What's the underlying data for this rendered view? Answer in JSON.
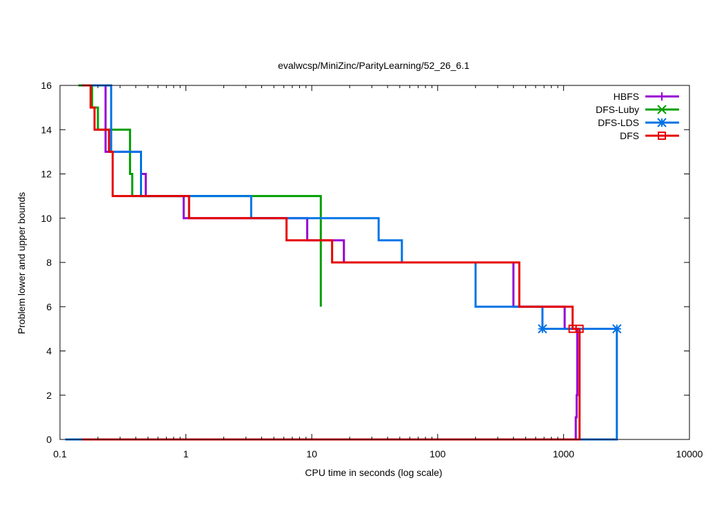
{
  "chart_data": {
    "type": "line",
    "title": "evalwcsp/MiniZinc/ParityLearning/52_26_6.1",
    "xlabel": "CPU time in seconds (log scale)",
    "ylabel": "Problem lower and upper bounds",
    "xscale": "log",
    "xlim": [
      0.1,
      10000
    ],
    "ylim": [
      0,
      16
    ],
    "xticks": [
      {
        "value": 0.1,
        "label": "0.1"
      },
      {
        "value": 1,
        "label": "1"
      },
      {
        "value": 10,
        "label": "10"
      },
      {
        "value": 100,
        "label": "100"
      },
      {
        "value": 1000,
        "label": "1000"
      },
      {
        "value": 10000,
        "label": "10000"
      }
    ],
    "yticks": [
      {
        "value": 0,
        "label": "0"
      },
      {
        "value": 2,
        "label": "2"
      },
      {
        "value": 4,
        "label": "4"
      },
      {
        "value": 6,
        "label": "6"
      },
      {
        "value": 8,
        "label": "8"
      },
      {
        "value": 10,
        "label": "10"
      },
      {
        "value": 12,
        "label": "12"
      },
      {
        "value": 14,
        "label": "14"
      },
      {
        "value": 16,
        "label": "16"
      }
    ],
    "legend_position": "top-right",
    "series": [
      {
        "name": "HBFS",
        "color": "#9400d3",
        "marker": "plus",
        "upper": [
          [
            0.15,
            16
          ],
          [
            0.23,
            16
          ],
          [
            0.23,
            13
          ],
          [
            0.44,
            13
          ],
          [
            0.44,
            12
          ],
          [
            0.48,
            12
          ],
          [
            0.48,
            11
          ],
          [
            0.96,
            11
          ],
          [
            0.96,
            10
          ],
          [
            9.2,
            10
          ],
          [
            9.2,
            9
          ],
          [
            18,
            9
          ],
          [
            18,
            8
          ],
          [
            400,
            8
          ],
          [
            400,
            6
          ],
          [
            1020,
            6
          ],
          [
            1020,
            5
          ],
          [
            1270,
            5
          ]
        ],
        "lower": [
          [
            0.15,
            0
          ],
          [
            1250,
            0
          ],
          [
            1250,
            1
          ],
          [
            1270,
            1
          ],
          [
            1270,
            2
          ],
          [
            1285,
            2
          ],
          [
            1285,
            5
          ]
        ],
        "markers": []
      },
      {
        "name": "DFS-Luby",
        "color": "#009e00",
        "marker": "x",
        "upper": [
          [
            0.14,
            16
          ],
          [
            0.18,
            16
          ],
          [
            0.18,
            15
          ],
          [
            0.2,
            15
          ],
          [
            0.2,
            14
          ],
          [
            0.36,
            14
          ],
          [
            0.36,
            12
          ],
          [
            0.375,
            12
          ],
          [
            0.375,
            11
          ],
          [
            11.8,
            11
          ],
          [
            11.8,
            6
          ]
        ],
        "lower": [],
        "markers": []
      },
      {
        "name": "DFS-LDS",
        "color": "#0072e6",
        "marker": "star",
        "upper": [
          [
            0.16,
            16
          ],
          [
            0.255,
            16
          ],
          [
            0.255,
            13
          ],
          [
            0.44,
            13
          ],
          [
            0.44,
            11
          ],
          [
            3.3,
            11
          ],
          [
            3.3,
            10
          ],
          [
            34,
            10
          ],
          [
            34,
            9
          ],
          [
            52,
            9
          ],
          [
            52,
            8
          ],
          [
            200,
            8
          ],
          [
            200,
            6
          ],
          [
            680,
            6
          ],
          [
            680,
            5
          ],
          [
            2650,
            5
          ]
        ],
        "lower": [
          [
            0.11,
            0
          ],
          [
            2650,
            0
          ],
          [
            2650,
            5
          ]
        ],
        "markers": [
          [
            680,
            5
          ],
          [
            2650,
            5
          ]
        ]
      },
      {
        "name": "DFS",
        "color": "#e60000",
        "marker": "box",
        "upper": [
          [
            0.15,
            16
          ],
          [
            0.175,
            16
          ],
          [
            0.175,
            15
          ],
          [
            0.188,
            15
          ],
          [
            0.188,
            14
          ],
          [
            0.245,
            14
          ],
          [
            0.245,
            13
          ],
          [
            0.262,
            13
          ],
          [
            0.262,
            11
          ],
          [
            1.06,
            11
          ],
          [
            1.06,
            10
          ],
          [
            6.3,
            10
          ],
          [
            6.3,
            9
          ],
          [
            14.5,
            9
          ],
          [
            14.5,
            8
          ],
          [
            445,
            8
          ],
          [
            445,
            6
          ],
          [
            1180,
            6
          ],
          [
            1180,
            5
          ],
          [
            1340,
            5
          ]
        ],
        "lower": [
          [
            0.15,
            0
          ],
          [
            1340,
            0
          ],
          [
            1340,
            5
          ]
        ],
        "markers": [
          [
            1180,
            5
          ],
          [
            1340,
            5
          ]
        ]
      }
    ]
  }
}
